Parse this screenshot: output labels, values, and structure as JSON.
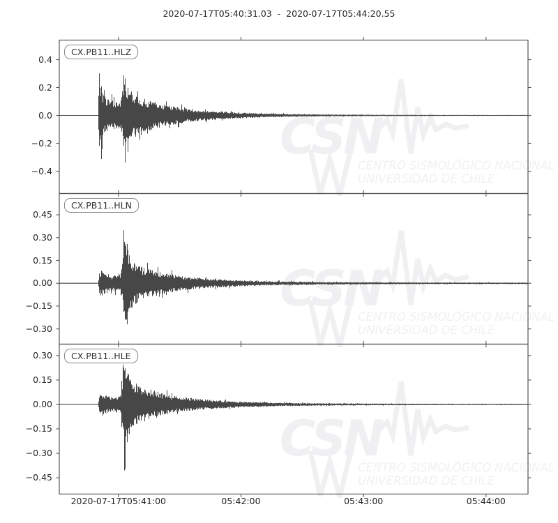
{
  "title": "2020-07-17T05:40:31.03  -  2020-07-17T05:44:20.55",
  "watermark": {
    "logo": "CSN",
    "line1": "CENTRO SISMOLÓGICO NACIONAL",
    "line2": "UNIVERSIDAD DE CHILE"
  },
  "colors": {
    "trace": "#474747",
    "spine": "#555555",
    "text": "#262626",
    "watermark": "#f0eff1",
    "background": "#ffffff"
  },
  "chart_data": {
    "type": "line",
    "kind": "three-component seismogram (velocity waveforms vs time)",
    "time_start": "2020-07-17T05:40:31.03",
    "time_end": "2020-07-17T05:44:20.55",
    "duration_seconds": 229.52,
    "grid": false,
    "legend": "none",
    "x_ticks": [
      {
        "label": "2020-07-17T05:41:00",
        "t": 28.97
      },
      {
        "label": "05:42:00",
        "t": 88.97
      },
      {
        "label": "05:43:00",
        "t": 148.97
      },
      {
        "label": "05:44:00",
        "t": 208.97
      }
    ],
    "panels": [
      {
        "label": "CX.PB11..HLZ",
        "ylim": [
          -0.56,
          0.54
        ],
        "y_ticks": [
          0.4,
          0.2,
          0.0,
          -0.2,
          -0.4
        ],
        "tick_decimals": 1,
        "seed": 7,
        "p_onset_s": 19.3,
        "s_onset_s": 31.5,
        "peak_amplitude_up": 0.33,
        "peak_amplitude_down": -0.35,
        "envelope": [
          [
            0,
            0.002
          ],
          [
            19.2,
            0.002
          ],
          [
            19.45,
            0.16
          ],
          [
            20.5,
            0.185
          ],
          [
            22,
            0.14
          ],
          [
            24,
            0.12
          ],
          [
            26,
            0.11
          ],
          [
            28,
            0.1
          ],
          [
            30,
            0.115
          ],
          [
            31.3,
            0.2
          ],
          [
            32.5,
            0.21
          ],
          [
            34,
            0.185
          ],
          [
            36,
            0.165
          ],
          [
            38,
            0.15
          ],
          [
            40,
            0.135
          ],
          [
            43,
            0.115
          ],
          [
            46,
            0.1
          ],
          [
            50,
            0.085
          ],
          [
            54,
            0.07
          ],
          [
            58,
            0.06
          ],
          [
            63,
            0.05
          ],
          [
            68,
            0.042
          ],
          [
            74,
            0.034
          ],
          [
            80,
            0.028
          ],
          [
            88,
            0.022
          ],
          [
            96,
            0.017
          ],
          [
            105,
            0.013
          ],
          [
            115,
            0.01
          ],
          [
            130,
            0.0075
          ],
          [
            145,
            0.006
          ],
          [
            160,
            0.005
          ],
          [
            180,
            0.004
          ],
          [
            200,
            0.0035
          ],
          [
            229.5,
            0.003
          ]
        ],
        "spikes": [
          [
            19.7,
            0.33,
            0.24
          ],
          [
            20.7,
            0.22,
            0.33
          ],
          [
            31.6,
            0.29,
            0.22
          ],
          [
            32.3,
            0.24,
            0.35
          ],
          [
            33.6,
            0.21,
            0.28
          ]
        ]
      },
      {
        "label": "CX.PB11..HLN",
        "ylim": [
          -0.4,
          0.59
        ],
        "y_ticks": [
          0.45,
          0.3,
          0.15,
          0.0,
          -0.15,
          -0.3
        ],
        "tick_decimals": 2,
        "seed": 13,
        "p_onset_s": 19.3,
        "s_onset_s": 31.7,
        "peak_amplitude_up": 0.41,
        "peak_amplitude_down": -0.29,
        "envelope": [
          [
            0,
            0.0015
          ],
          [
            19.2,
            0.0015
          ],
          [
            19.5,
            0.065
          ],
          [
            20.5,
            0.085
          ],
          [
            22,
            0.075
          ],
          [
            24,
            0.06
          ],
          [
            26,
            0.05
          ],
          [
            28,
            0.055
          ],
          [
            30,
            0.07
          ],
          [
            31.2,
            0.16
          ],
          [
            32,
            0.27
          ],
          [
            33,
            0.25
          ],
          [
            34.5,
            0.2
          ],
          [
            36,
            0.16
          ],
          [
            38,
            0.13
          ],
          [
            40,
            0.115
          ],
          [
            43,
            0.1
          ],
          [
            46,
            0.09
          ],
          [
            50,
            0.075
          ],
          [
            54,
            0.063
          ],
          [
            58,
            0.054
          ],
          [
            63,
            0.045
          ],
          [
            68,
            0.038
          ],
          [
            74,
            0.031
          ],
          [
            80,
            0.026
          ],
          [
            88,
            0.021
          ],
          [
            96,
            0.017
          ],
          [
            105,
            0.014
          ],
          [
            115,
            0.011
          ],
          [
            130,
            0.009
          ],
          [
            145,
            0.0075
          ],
          [
            160,
            0.0065
          ],
          [
            180,
            0.0055
          ],
          [
            200,
            0.005
          ],
          [
            229.5,
            0.0045
          ]
        ],
        "spikes": [
          [
            31.7,
            0.41,
            0.22
          ],
          [
            32.5,
            0.31,
            0.29
          ],
          [
            33.3,
            0.26,
            0.27
          ]
        ]
      },
      {
        "label": "CX.PB11..HLE",
        "ylim": [
          -0.55,
          0.37
        ],
        "y_ticks": [
          0.3,
          0.15,
          0.0,
          -0.15,
          -0.3,
          -0.45
        ],
        "tick_decimals": 2,
        "seed": 21,
        "p_onset_s": 19.3,
        "s_onset_s": 31.4,
        "peak_amplitude_up": 0.31,
        "peak_amplitude_down": -0.53,
        "envelope": [
          [
            0,
            0.0015
          ],
          [
            19.2,
            0.0015
          ],
          [
            19.5,
            0.055
          ],
          [
            20.5,
            0.075
          ],
          [
            22,
            0.065
          ],
          [
            24,
            0.055
          ],
          [
            26,
            0.048
          ],
          [
            28,
            0.052
          ],
          [
            30,
            0.065
          ],
          [
            31.2,
            0.15
          ],
          [
            32,
            0.23
          ],
          [
            33,
            0.21
          ],
          [
            34.5,
            0.18
          ],
          [
            36,
            0.155
          ],
          [
            38,
            0.13
          ],
          [
            40,
            0.115
          ],
          [
            43,
            0.1
          ],
          [
            46,
            0.088
          ],
          [
            50,
            0.073
          ],
          [
            54,
            0.06
          ],
          [
            58,
            0.05
          ],
          [
            63,
            0.042
          ],
          [
            68,
            0.035
          ],
          [
            74,
            0.029
          ],
          [
            80,
            0.024
          ],
          [
            88,
            0.019
          ],
          [
            96,
            0.015
          ],
          [
            105,
            0.012
          ],
          [
            115,
            0.0095
          ],
          [
            130,
            0.0075
          ],
          [
            145,
            0.006
          ],
          [
            160,
            0.005
          ],
          [
            180,
            0.0042
          ],
          [
            200,
            0.0037
          ],
          [
            229.5,
            0.0033
          ]
        ],
        "spikes": [
          [
            31.4,
            0.31,
            0.16
          ],
          [
            32.1,
            0.21,
            0.53
          ],
          [
            33.4,
            0.19,
            0.27
          ]
        ]
      }
    ]
  }
}
